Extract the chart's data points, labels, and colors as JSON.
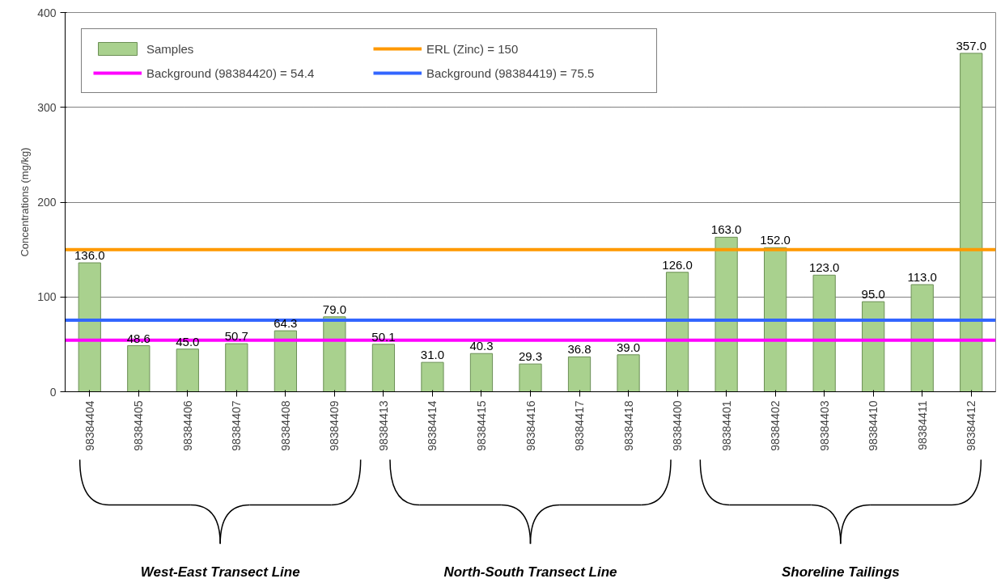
{
  "chart_data": {
    "type": "bar",
    "ylabel": "Concentrations (mg/kg)",
    "categories": [
      "98384404",
      "98384405",
      "98384406",
      "98384407",
      "98384408",
      "98384409",
      "98384413",
      "98384414",
      "98384415",
      "98384416",
      "98384417",
      "98384418",
      "98384400",
      "98384401",
      "98384402",
      "98384403",
      "98384410",
      "98384411",
      "98384412"
    ],
    "series": [
      {
        "name": "Samples",
        "color": "#a9d18e",
        "values": [
          136.0,
          48.6,
          45.0,
          50.7,
          64.3,
          79.0,
          50.1,
          31.0,
          40.3,
          29.3,
          36.8,
          39.0,
          126.0,
          163.0,
          152.0,
          123.0,
          95.0,
          113.0,
          357.0
        ]
      }
    ],
    "value_labels": [
      "136.0",
      "48.6",
      "45.0",
      "50.7",
      "64.3",
      "79.0",
      "50.1",
      "31.0",
      "40.3",
      "29.3",
      "36.8",
      "39.0",
      "126.0",
      "163.0",
      "152.0",
      "123.0",
      "95.0",
      "113.0",
      "357.0"
    ],
    "ylim": [
      0,
      400
    ],
    "yticks": [
      0,
      100,
      200,
      300,
      400
    ],
    "grid": "y",
    "legend": "top left",
    "ref_lines": [
      {
        "axis": "y",
        "value": 54.4,
        "label": "Background (98384420) = 54.4",
        "color": "#ff00ff"
      },
      {
        "axis": "y",
        "value": 150,
        "label": "ERL (Zinc) = 150",
        "color": "#ff9900"
      },
      {
        "axis": "y",
        "value": 75.5,
        "label": "Background (98384419) = 75.5",
        "color": "#3366ff"
      }
    ],
    "annotations": [
      "West-East Transect Line",
      "North-South Transect Line",
      "Shoreline Tailings"
    ]
  }
}
